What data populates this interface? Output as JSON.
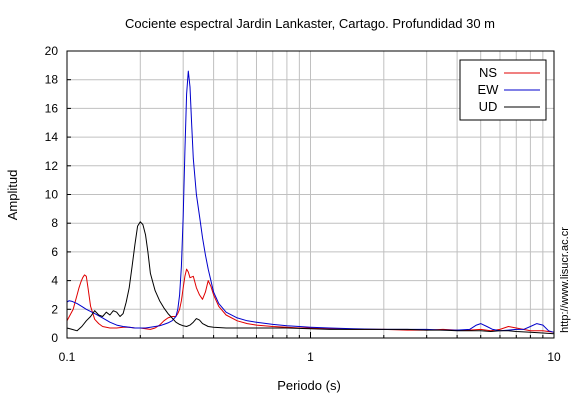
{
  "chart_data": {
    "type": "line",
    "title": "Cociente espectral Jardin Lankaster, Cartago. Profundidad 30 m",
    "xlabel": "Periodo (s)",
    "ylabel": "Amplitud",
    "xscale": "log",
    "xlim": [
      0.1,
      10
    ],
    "ylim": [
      0,
      20
    ],
    "xticks": [
      {
        "value": 0.1,
        "label": "0.1"
      },
      {
        "value": 1,
        "label": "1"
      },
      {
        "value": 10,
        "label": "10"
      }
    ],
    "yticks": [
      0,
      2,
      4,
      6,
      8,
      10,
      12,
      14,
      16,
      18,
      20
    ],
    "grid": true,
    "legend_position": "top-right",
    "side_text": "http://www.lisucr.ac.cr",
    "series": [
      {
        "name": "NS",
        "color": "#e00000",
        "points": [
          [
            0.1,
            1.2
          ],
          [
            0.103,
            1.6
          ],
          [
            0.106,
            2.0
          ],
          [
            0.108,
            2.5
          ],
          [
            0.11,
            3.0
          ],
          [
            0.112,
            3.5
          ],
          [
            0.114,
            3.9
          ],
          [
            0.116,
            4.2
          ],
          [
            0.118,
            4.4
          ],
          [
            0.12,
            4.3
          ],
          [
            0.122,
            3.5
          ],
          [
            0.125,
            2.2
          ],
          [
            0.13,
            1.3
          ],
          [
            0.135,
            1.0
          ],
          [
            0.14,
            0.8
          ],
          [
            0.15,
            0.7
          ],
          [
            0.16,
            0.7
          ],
          [
            0.17,
            0.75
          ],
          [
            0.18,
            0.75
          ],
          [
            0.19,
            0.7
          ],
          [
            0.2,
            0.7
          ],
          [
            0.21,
            0.65
          ],
          [
            0.22,
            0.6
          ],
          [
            0.23,
            0.7
          ],
          [
            0.24,
            0.9
          ],
          [
            0.25,
            1.2
          ],
          [
            0.26,
            1.4
          ],
          [
            0.27,
            1.5
          ],
          [
            0.28,
            1.5
          ],
          [
            0.285,
            1.7
          ],
          [
            0.29,
            2.0
          ],
          [
            0.295,
            2.6
          ],
          [
            0.3,
            3.5
          ],
          [
            0.305,
            4.3
          ],
          [
            0.31,
            4.8
          ],
          [
            0.315,
            4.6
          ],
          [
            0.32,
            4.2
          ],
          [
            0.33,
            4.3
          ],
          [
            0.34,
            3.5
          ],
          [
            0.35,
            3.0
          ],
          [
            0.36,
            2.7
          ],
          [
            0.37,
            3.2
          ],
          [
            0.38,
            4.0
          ],
          [
            0.39,
            3.6
          ],
          [
            0.4,
            3.0
          ],
          [
            0.42,
            2.2
          ],
          [
            0.45,
            1.6
          ],
          [
            0.5,
            1.2
          ],
          [
            0.55,
            1.0
          ],
          [
            0.6,
            0.9
          ],
          [
            0.7,
            0.8
          ],
          [
            0.8,
            0.75
          ],
          [
            0.9,
            0.7
          ],
          [
            1.0,
            0.7
          ],
          [
            1.2,
            0.65
          ],
          [
            1.5,
            0.6
          ],
          [
            2.0,
            0.6
          ],
          [
            2.5,
            0.55
          ],
          [
            3.0,
            0.55
          ],
          [
            3.5,
            0.6
          ],
          [
            4.0,
            0.55
          ],
          [
            4.5,
            0.55
          ],
          [
            5.0,
            0.6
          ],
          [
            5.5,
            0.5
          ],
          [
            6.0,
            0.6
          ],
          [
            6.5,
            0.8
          ],
          [
            7.0,
            0.7
          ],
          [
            8.0,
            0.5
          ],
          [
            9.0,
            0.5
          ],
          [
            10.0,
            0.4
          ]
        ]
      },
      {
        "name": "EW",
        "color": "#0000cc",
        "points": [
          [
            0.1,
            2.5
          ],
          [
            0.102,
            2.6
          ],
          [
            0.105,
            2.55
          ],
          [
            0.11,
            2.4
          ],
          [
            0.115,
            2.2
          ],
          [
            0.12,
            2.0
          ],
          [
            0.13,
            1.7
          ],
          [
            0.14,
            1.4
          ],
          [
            0.15,
            1.1
          ],
          [
            0.16,
            0.9
          ],
          [
            0.17,
            0.8
          ],
          [
            0.18,
            0.75
          ],
          [
            0.19,
            0.7
          ],
          [
            0.2,
            0.7
          ],
          [
            0.21,
            0.7
          ],
          [
            0.22,
            0.75
          ],
          [
            0.23,
            0.8
          ],
          [
            0.24,
            0.85
          ],
          [
            0.25,
            0.95
          ],
          [
            0.26,
            1.05
          ],
          [
            0.27,
            1.2
          ],
          [
            0.28,
            1.5
          ],
          [
            0.285,
            2.0
          ],
          [
            0.29,
            3.0
          ],
          [
            0.295,
            5.0
          ],
          [
            0.3,
            8.5
          ],
          [
            0.305,
            13.0
          ],
          [
            0.31,
            17.0
          ],
          [
            0.315,
            18.6
          ],
          [
            0.32,
            17.5
          ],
          [
            0.325,
            15.0
          ],
          [
            0.33,
            12.5
          ],
          [
            0.34,
            10.0
          ],
          [
            0.35,
            8.5
          ],
          [
            0.36,
            7.0
          ],
          [
            0.37,
            5.8
          ],
          [
            0.38,
            4.8
          ],
          [
            0.4,
            3.2
          ],
          [
            0.42,
            2.4
          ],
          [
            0.45,
            1.8
          ],
          [
            0.5,
            1.4
          ],
          [
            0.55,
            1.2
          ],
          [
            0.6,
            1.1
          ],
          [
            0.7,
            0.95
          ],
          [
            0.8,
            0.85
          ],
          [
            0.9,
            0.8
          ],
          [
            1.0,
            0.75
          ],
          [
            1.2,
            0.7
          ],
          [
            1.5,
            0.65
          ],
          [
            2.0,
            0.6
          ],
          [
            2.5,
            0.6
          ],
          [
            3.0,
            0.6
          ],
          [
            3.5,
            0.55
          ],
          [
            4.0,
            0.55
          ],
          [
            4.5,
            0.6
          ],
          [
            4.8,
            0.9
          ],
          [
            5.0,
            1.0
          ],
          [
            5.3,
            0.8
          ],
          [
            5.6,
            0.6
          ],
          [
            6.0,
            0.5
          ],
          [
            6.5,
            0.55
          ],
          [
            7.0,
            0.6
          ],
          [
            7.5,
            0.6
          ],
          [
            8.0,
            0.8
          ],
          [
            8.5,
            1.0
          ],
          [
            9.0,
            0.9
          ],
          [
            9.5,
            0.5
          ],
          [
            10.0,
            0.4
          ]
        ]
      },
      {
        "name": "UD",
        "color": "#000000",
        "points": [
          [
            0.1,
            0.7
          ],
          [
            0.105,
            0.6
          ],
          [
            0.11,
            0.5
          ],
          [
            0.115,
            0.8
          ],
          [
            0.12,
            1.2
          ],
          [
            0.125,
            1.5
          ],
          [
            0.13,
            1.9
          ],
          [
            0.135,
            1.6
          ],
          [
            0.14,
            1.5
          ],
          [
            0.145,
            1.8
          ],
          [
            0.15,
            1.6
          ],
          [
            0.155,
            1.9
          ],
          [
            0.16,
            1.8
          ],
          [
            0.165,
            1.5
          ],
          [
            0.17,
            1.7
          ],
          [
            0.175,
            2.5
          ],
          [
            0.18,
            3.5
          ],
          [
            0.185,
            5.0
          ],
          [
            0.19,
            6.5
          ],
          [
            0.195,
            7.8
          ],
          [
            0.2,
            8.1
          ],
          [
            0.205,
            7.9
          ],
          [
            0.21,
            7.2
          ],
          [
            0.215,
            6.0
          ],
          [
            0.22,
            4.5
          ],
          [
            0.23,
            3.3
          ],
          [
            0.24,
            2.6
          ],
          [
            0.25,
            2.1
          ],
          [
            0.26,
            1.7
          ],
          [
            0.27,
            1.4
          ],
          [
            0.28,
            1.1
          ],
          [
            0.29,
            0.95
          ],
          [
            0.3,
            0.85
          ],
          [
            0.31,
            0.8
          ],
          [
            0.32,
            0.9
          ],
          [
            0.33,
            1.1
          ],
          [
            0.34,
            1.35
          ],
          [
            0.35,
            1.25
          ],
          [
            0.36,
            1.0
          ],
          [
            0.38,
            0.8
          ],
          [
            0.4,
            0.75
          ],
          [
            0.45,
            0.7
          ],
          [
            0.5,
            0.7
          ],
          [
            0.6,
            0.7
          ],
          [
            0.7,
            0.7
          ],
          [
            0.8,
            0.7
          ],
          [
            1.0,
            0.65
          ],
          [
            1.2,
            0.6
          ],
          [
            1.5,
            0.6
          ],
          [
            2.0,
            0.6
          ],
          [
            2.5,
            0.6
          ],
          [
            3.0,
            0.55
          ],
          [
            3.5,
            0.55
          ],
          [
            4.0,
            0.5
          ],
          [
            4.5,
            0.5
          ],
          [
            5.0,
            0.5
          ],
          [
            5.5,
            0.45
          ],
          [
            6.0,
            0.5
          ],
          [
            6.5,
            0.5
          ],
          [
            7.0,
            0.45
          ],
          [
            8.0,
            0.4
          ],
          [
            9.0,
            0.35
          ],
          [
            10.0,
            0.3
          ]
        ]
      }
    ]
  }
}
